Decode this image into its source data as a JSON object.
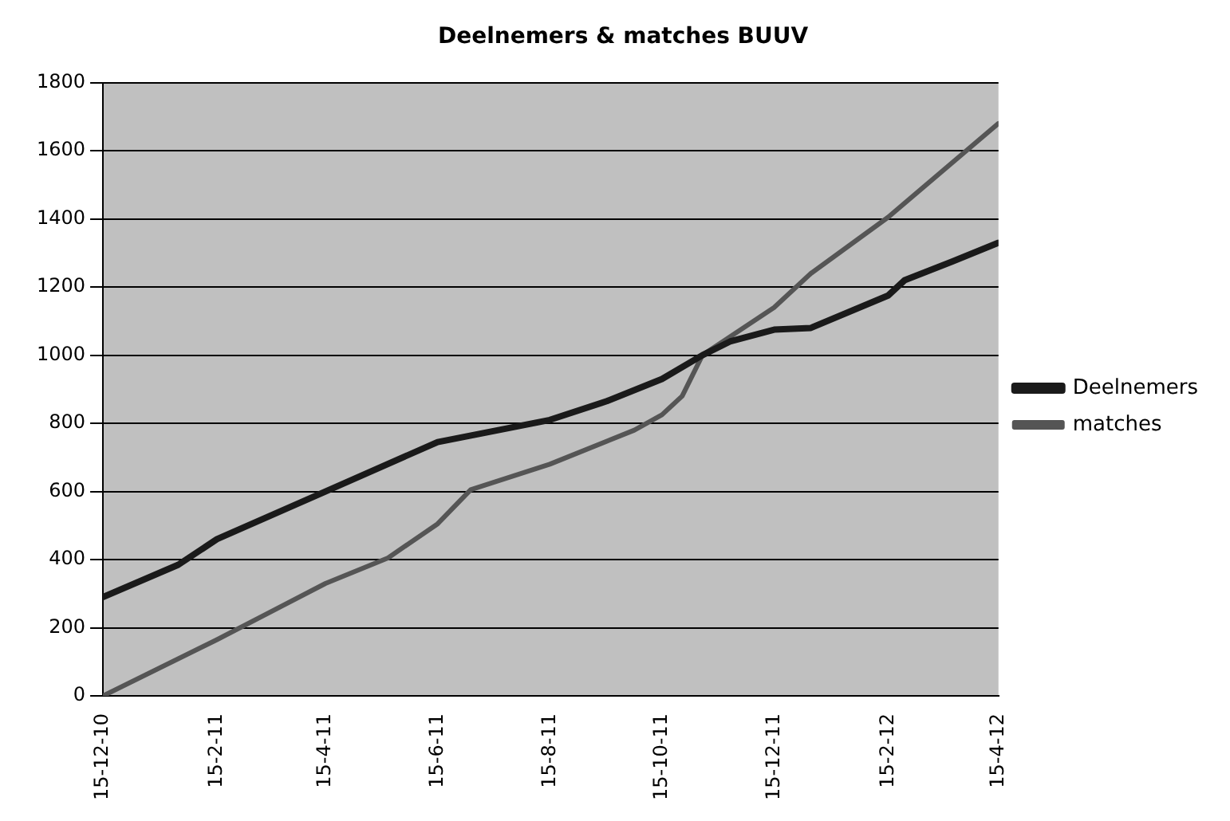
{
  "chart_data": {
    "type": "line",
    "title": "Deelnemers & matches BUUV",
    "xlim": [
      "2010-12-15",
      "2012-04-15"
    ],
    "xticks": [
      {
        "value": "2010-12-15",
        "label": "15-12-10"
      },
      {
        "value": "2011-02-15",
        "label": "15-2-11"
      },
      {
        "value": "2011-04-15",
        "label": "15-4-11"
      },
      {
        "value": "2011-06-15",
        "label": "15-6-11"
      },
      {
        "value": "2011-08-15",
        "label": "15-8-11"
      },
      {
        "value": "2011-10-15",
        "label": "15-10-11"
      },
      {
        "value": "2011-12-15",
        "label": "15-12-11"
      },
      {
        "value": "2012-02-15",
        "label": "15-2-12"
      },
      {
        "value": "2012-04-15",
        "label": "15-4-12"
      }
    ],
    "ylim": [
      0,
      1800
    ],
    "yticks": [
      0,
      200,
      400,
      600,
      800,
      1000,
      1200,
      1400,
      1600,
      1800
    ],
    "grid": "y",
    "legend": "right",
    "marker": "none",
    "series": [
      {
        "name": "Deelnemers",
        "color": "#1a1a1a",
        "x": [
          "2010-12-15",
          "2011-01-25",
          "2011-02-15",
          "2011-04-15",
          "2011-06-15",
          "2011-07-18",
          "2011-08-15",
          "2011-09-15",
          "2011-10-15",
          "2011-11-06",
          "2011-11-21",
          "2011-12-15",
          "2012-01-04",
          "2012-02-15",
          "2012-02-24",
          "2012-03-21",
          "2012-04-15"
        ],
        "values": [
          290,
          385,
          460,
          600,
          745,
          780,
          810,
          865,
          930,
          1000,
          1040,
          1075,
          1080,
          1175,
          1220,
          1275,
          1330
        ]
      },
      {
        "name": "matches",
        "color": "#555555",
        "x": [
          "2010-12-15",
          "2011-02-15",
          "2011-04-15",
          "2011-05-19",
          "2011-06-15",
          "2011-07-03",
          "2011-08-15",
          "2011-09-30",
          "2011-10-15",
          "2011-10-26",
          "2011-11-06",
          "2011-12-15",
          "2012-01-04",
          "2012-02-15",
          "2012-04-15"
        ],
        "values": [
          0,
          165,
          330,
          405,
          505,
          605,
          680,
          780,
          825,
          880,
          1000,
          1140,
          1240,
          1405,
          1680
        ]
      }
    ]
  }
}
